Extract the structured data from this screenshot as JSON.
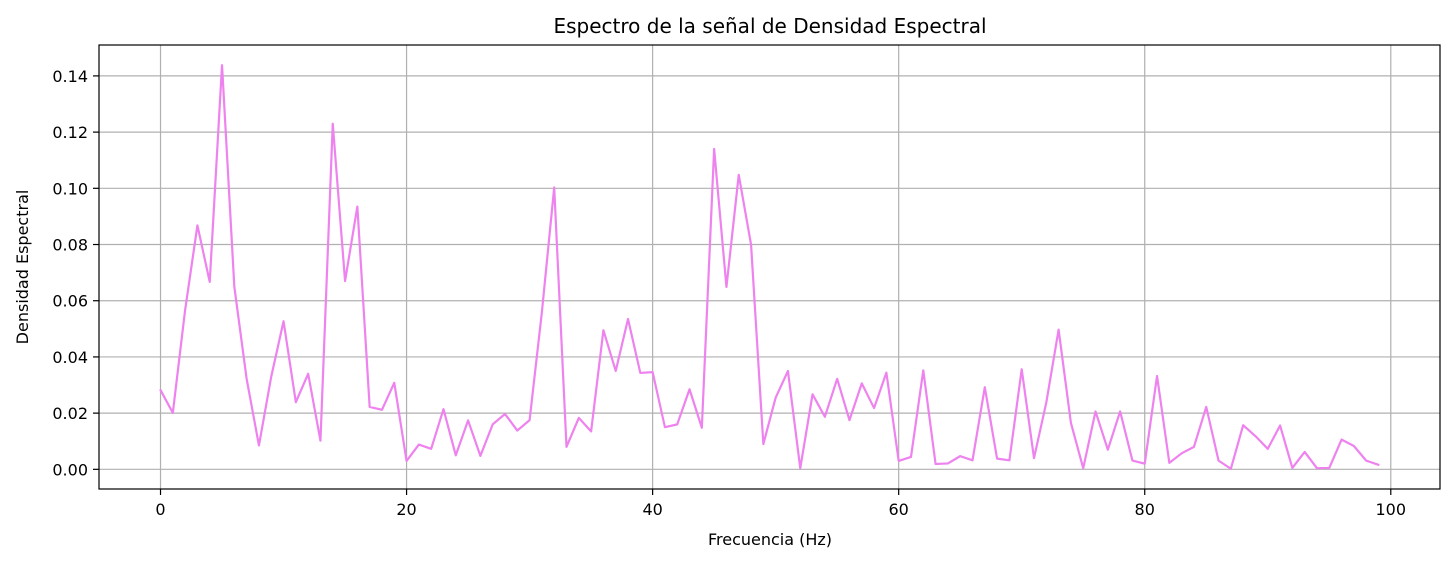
{
  "chart_data": {
    "type": "line",
    "title": "Espectro de la señal de Densidad Espectral",
    "xlabel": "Frecuencia (Hz)",
    "ylabel": "Densidad Espectral",
    "xlim": [
      -5,
      104
    ],
    "ylim": [
      -0.007,
      0.151
    ],
    "xticks": [
      0,
      20,
      40,
      60,
      80,
      100
    ],
    "xtick_labels": [
      "0",
      "20",
      "40",
      "60",
      "80",
      "100"
    ],
    "yticks": [
      0.0,
      0.02,
      0.04,
      0.06,
      0.08,
      0.1,
      0.12,
      0.14
    ],
    "ytick_labels": [
      "0.00",
      "0.02",
      "0.04",
      "0.06",
      "0.08",
      "0.10",
      "0.12",
      "0.14"
    ],
    "grid": true,
    "line_color": "#ee82ee",
    "series": [
      {
        "x": [
          0,
          1,
          2,
          3,
          4,
          5,
          6,
          7,
          8,
          9,
          10,
          11,
          12,
          13,
          14,
          15,
          16,
          17,
          18,
          19,
          20,
          21,
          22,
          23,
          24,
          25,
          26,
          27,
          28,
          29,
          30,
          31,
          32,
          33,
          34,
          35,
          36,
          37,
          38,
          39,
          40,
          41,
          42,
          43,
          44,
          45,
          46,
          47,
          48,
          49,
          50,
          51,
          52,
          53,
          54,
          55,
          56,
          57,
          58,
          59,
          60,
          61,
          62,
          63,
          64,
          65,
          66,
          67,
          68,
          69,
          70,
          71,
          72,
          73,
          74,
          75,
          76,
          77,
          78,
          79,
          80,
          81,
          82,
          83,
          84,
          85,
          86,
          87,
          88,
          89,
          90,
          91,
          92,
          93,
          94,
          95,
          96,
          97,
          98,
          99
        ],
        "values": [
          0.0282,
          0.0201,
          0.0567,
          0.0868,
          0.0667,
          0.1438,
          0.065,
          0.0322,
          0.0085,
          0.033,
          0.0527,
          0.0239,
          0.034,
          0.0102,
          0.123,
          0.067,
          0.0935,
          0.0222,
          0.0212,
          0.0308,
          0.003,
          0.0088,
          0.0073,
          0.0214,
          0.005,
          0.0174,
          0.0048,
          0.016,
          0.0197,
          0.0138,
          0.0175,
          0.056,
          0.1003,
          0.008,
          0.0183,
          0.0135,
          0.0495,
          0.035,
          0.0535,
          0.0343,
          0.0346,
          0.015,
          0.016,
          0.0285,
          0.0148,
          0.114,
          0.0649,
          0.1048,
          0.08,
          0.009,
          0.0255,
          0.035,
          0.0004,
          0.0267,
          0.0187,
          0.0322,
          0.0175,
          0.0306,
          0.0218,
          0.0344,
          0.003,
          0.0044,
          0.0352,
          0.0019,
          0.0021,
          0.0047,
          0.0032,
          0.0292,
          0.0038,
          0.0032,
          0.0356,
          0.004,
          0.0238,
          0.0497,
          0.0165,
          0.0004,
          0.0206,
          0.007,
          0.0206,
          0.0031,
          0.002,
          0.0332,
          0.0023,
          0.0057,
          0.008,
          0.0222,
          0.0031,
          0.0002,
          0.0157,
          0.0118,
          0.0073,
          0.0156,
          0.0005,
          0.0062,
          0.0004,
          0.0005,
          0.0106,
          0.0083,
          0.0031,
          0.0016
        ]
      }
    ]
  }
}
